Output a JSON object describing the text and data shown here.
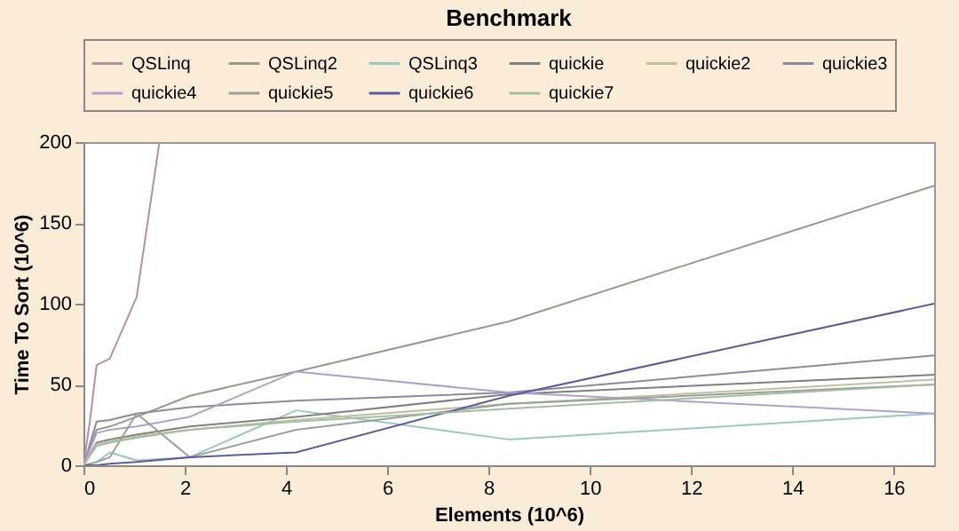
{
  "chart_data": {
    "type": "line",
    "title": "Benchmark",
    "xlabel": "Elements (10^6)",
    "ylabel": "Time To Sort (10^6)",
    "x": [
      0,
      0.26,
      0.52,
      1.05,
      2.1,
      4.2,
      8.4,
      16.8
    ],
    "xlim": [
      0,
      16.8
    ],
    "xticks": [
      0,
      2,
      4,
      6,
      8,
      10,
      12,
      14,
      16
    ],
    "ylim": [
      0,
      200
    ],
    "yticks": [
      0,
      50,
      100,
      150,
      200
    ],
    "grid": false,
    "legend": "top",
    "marker": "none",
    "line_style": "solid",
    "series": [
      {
        "name": "QSLinq",
        "color": "#b8909a",
        "x": [
          0,
          0.13,
          0.26,
          0.52,
          1.05,
          1.5
        ],
        "values": [
          0,
          28,
          62,
          66,
          104,
          200
        ]
      },
      {
        "name": "QSLinq2",
        "color": "#98988c",
        "values": [
          0,
          22,
          24,
          30,
          43,
          58,
          89,
          173
        ]
      },
      {
        "name": "QSLinq3",
        "color": "#98c8c0",
        "values": [
          0,
          2,
          8,
          3,
          5,
          34,
          16,
          32
        ]
      },
      {
        "name": "quickie",
        "color": "#808080",
        "values": [
          0,
          14,
          16,
          19,
          24,
          30,
          44,
          56
        ]
      },
      {
        "name": "quickie2",
        "color": "#c0c0a0",
        "values": [
          0,
          13,
          15,
          18,
          22,
          28,
          38,
          53
        ]
      },
      {
        "name": "quickie3",
        "color": "#8a8aa0",
        "values": [
          0,
          27,
          28,
          32,
          36,
          40,
          45,
          68
        ]
      },
      {
        "name": "quickie4",
        "color": "#b0a0d0",
        "values": [
          0,
          20,
          22,
          24,
          30,
          58,
          45,
          32
        ]
      },
      {
        "name": "quickie5",
        "color": "#98a098",
        "values": [
          0,
          2,
          5,
          32,
          5,
          22,
          38,
          50
        ]
      },
      {
        "name": "quickie6",
        "color": "#5a5aa0",
        "values": [
          0,
          0,
          1,
          2,
          5,
          8,
          43,
          100
        ]
      },
      {
        "name": "quickie7",
        "color": "#a0c0a0",
        "values": [
          0,
          12,
          14,
          17,
          22,
          27,
          35,
          50
        ]
      }
    ]
  }
}
